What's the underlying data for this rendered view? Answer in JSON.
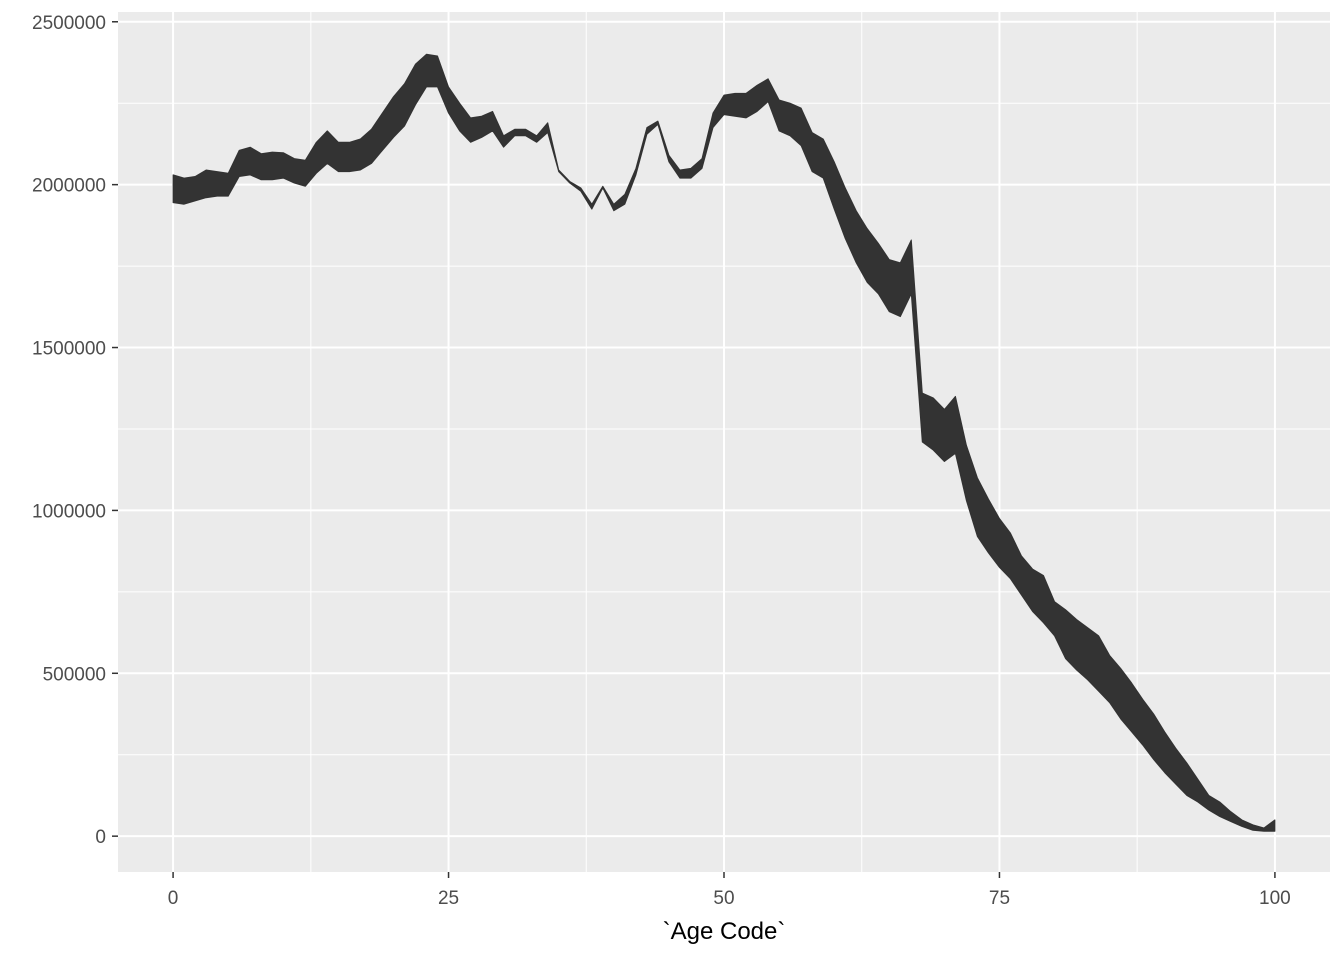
{
  "chart_data": {
    "type": "area",
    "title": "",
    "xlabel": "`Age Code`",
    "ylabel": "",
    "xlim": [
      -5,
      105
    ],
    "ylim": [
      -110000,
      2530000
    ],
    "x_ticks": [
      0,
      25,
      50,
      75,
      100
    ],
    "x_tick_labels": [
      "0",
      "25",
      "50",
      "75",
      "100"
    ],
    "y_ticks": [
      0,
      500000,
      1000000,
      1500000,
      2000000,
      2500000
    ],
    "y_tick_labels": [
      "0",
      "500000",
      "1000000",
      "1500000",
      "2000000",
      "2500000"
    ],
    "grid": true,
    "legend": "none",
    "colors": {
      "panel": "#ebebeb",
      "grid": "#ffffff",
      "fill": "#333333"
    },
    "series": [
      {
        "x": [
          0,
          1,
          2,
          3,
          4,
          5,
          6,
          7,
          8,
          9,
          10,
          11,
          12,
          13,
          14,
          15,
          16,
          17,
          18,
          19,
          20,
          21,
          22,
          23,
          24,
          25,
          26,
          27,
          28,
          29,
          30,
          31,
          32,
          33,
          34,
          35,
          36,
          37,
          38,
          39,
          40,
          41,
          42,
          43,
          44,
          45,
          46,
          47,
          48,
          49,
          50,
          51,
          52,
          53,
          54,
          55,
          56,
          57,
          58,
          59,
          60,
          61,
          62,
          63,
          64,
          65,
          66,
          67,
          68,
          69,
          70,
          71,
          72,
          73,
          74,
          75,
          76,
          77,
          78,
          79,
          80,
          81,
          82,
          83,
          84,
          85,
          86,
          87,
          88,
          89,
          90,
          91,
          92,
          93,
          94,
          95,
          96,
          97,
          98,
          99,
          100
        ],
        "upper": [
          2030000,
          2020000,
          2025000,
          2045000,
          2040000,
          2035000,
          2105000,
          2115000,
          2095000,
          2100000,
          2098000,
          2080000,
          2075000,
          2130000,
          2165000,
          2130000,
          2130000,
          2140000,
          2170000,
          2220000,
          2270000,
          2310000,
          2370000,
          2400000,
          2395000,
          2300000,
          2250000,
          2205000,
          2210000,
          2225000,
          2150000,
          2170000,
          2170000,
          2150000,
          2190000,
          2045000,
          2010000,
          1990000,
          1940000,
          1995000,
          1940000,
          1970000,
          2050000,
          2175000,
          2195000,
          2090000,
          2045000,
          2050000,
          2080000,
          2220000,
          2275000,
          2280000,
          2280000,
          2305000,
          2325000,
          2260000,
          2250000,
          2235000,
          2160000,
          2140000,
          2070000,
          1990000,
          1920000,
          1865000,
          1820000,
          1770000,
          1760000,
          1830000,
          1360000,
          1345000,
          1310000,
          1350000,
          1200000,
          1100000,
          1035000,
          975000,
          930000,
          860000,
          820000,
          800000,
          720000,
          695000,
          665000,
          640000,
          615000,
          555000,
          515000,
          470000,
          420000,
          375000,
          320000,
          270000,
          225000,
          175000,
          125000,
          105000,
          75000,
          50000,
          35000,
          25000,
          50000
        ],
        "lower": [
          1945000,
          1940000,
          1950000,
          1960000,
          1965000,
          1965000,
          2025000,
          2030000,
          2015000,
          2015000,
          2020000,
          2005000,
          1995000,
          2035000,
          2065000,
          2040000,
          2040000,
          2045000,
          2065000,
          2105000,
          2145000,
          2180000,
          2245000,
          2300000,
          2300000,
          2220000,
          2165000,
          2130000,
          2145000,
          2165000,
          2115000,
          2150000,
          2150000,
          2130000,
          2160000,
          2040000,
          2005000,
          1980000,
          1925000,
          1990000,
          1920000,
          1940000,
          2030000,
          2155000,
          2185000,
          2070000,
          2020000,
          2020000,
          2050000,
          2175000,
          2215000,
          2210000,
          2205000,
          2225000,
          2255000,
          2165000,
          2150000,
          2120000,
          2040000,
          2020000,
          1925000,
          1835000,
          1760000,
          1700000,
          1665000,
          1610000,
          1595000,
          1665000,
          1210000,
          1185000,
          1150000,
          1175000,
          1030000,
          920000,
          870000,
          825000,
          790000,
          740000,
          690000,
          655000,
          615000,
          545000,
          510000,
          480000,
          445000,
          410000,
          360000,
          320000,
          280000,
          235000,
          195000,
          160000,
          125000,
          105000,
          80000,
          60000,
          45000,
          30000,
          18000,
          15000,
          15000
        ]
      }
    ]
  }
}
